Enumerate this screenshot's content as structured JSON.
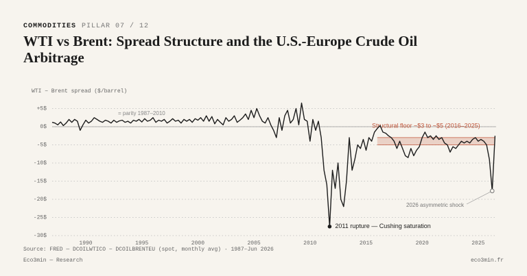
{
  "header": {
    "section": "COMMODITIES",
    "pillar": "PILLAR 07 / 12"
  },
  "chart_data": {
    "type": "line",
    "title": "WTI vs Brent: Spread Structure and the U.S.-Europe Crude Oil Arbitrage",
    "y_label": "WTI − Brent spread ($/barrel)",
    "color": "#1c1c1c",
    "x": [
      1987,
      1987.25,
      1987.5,
      1987.75,
      1988,
      1988.25,
      1988.5,
      1988.75,
      1989,
      1989.25,
      1989.5,
      1989.75,
      1990,
      1990.25,
      1990.5,
      1990.75,
      1991,
      1991.25,
      1991.5,
      1991.75,
      1992,
      1992.25,
      1992.5,
      1992.75,
      1993,
      1993.25,
      1993.5,
      1993.75,
      1994,
      1994.25,
      1994.5,
      1994.75,
      1995,
      1995.25,
      1995.5,
      1995.75,
      1996,
      1996.25,
      1996.5,
      1996.75,
      1997,
      1997.25,
      1997.5,
      1997.75,
      1998,
      1998.25,
      1998.5,
      1998.75,
      1999,
      1999.25,
      1999.5,
      1999.75,
      2000,
      2000.25,
      2000.5,
      2000.75,
      2001,
      2001.25,
      2001.5,
      2001.75,
      2002,
      2002.25,
      2002.5,
      2002.75,
      2003,
      2003.25,
      2003.5,
      2003.75,
      2004,
      2004.25,
      2004.5,
      2004.75,
      2005,
      2005.25,
      2005.5,
      2005.75,
      2006,
      2006.25,
      2006.5,
      2006.75,
      2007,
      2007.25,
      2007.5,
      2007.75,
      2008,
      2008.25,
      2008.5,
      2008.75,
      2009,
      2009.25,
      2009.5,
      2009.75,
      2010,
      2010.25,
      2010.5,
      2010.75,
      2011,
      2011.25,
      2011.5,
      2011.75,
      2012,
      2012.25,
      2012.5,
      2012.75,
      2013,
      2013.25,
      2013.5,
      2013.75,
      2014,
      2014.25,
      2014.5,
      2014.75,
      2015,
      2015.25,
      2015.5,
      2015.75,
      2016,
      2016.25,
      2016.5,
      2016.75,
      2017,
      2017.25,
      2017.5,
      2017.75,
      2018,
      2018.25,
      2018.5,
      2018.75,
      2019,
      2019.25,
      2019.5,
      2019.75,
      2020,
      2020.25,
      2020.5,
      2020.75,
      2021,
      2021.25,
      2021.5,
      2021.75,
      2022,
      2022.25,
      2022.5,
      2022.75,
      2023,
      2023.25,
      2023.5,
      2023.75,
      2024,
      2024.25,
      2024.5,
      2024.75,
      2025,
      2025.25,
      2025.5,
      2025.75,
      2026,
      2026.25,
      2026.5
    ],
    "values": [
      1.2,
      1.0,
      0.5,
      1.3,
      0.3,
      1.0,
      2.0,
      1.2,
      2.0,
      1.5,
      -1.0,
      0.5,
      1.8,
      1.0,
      1.5,
      2.5,
      2.0,
      1.5,
      1.2,
      1.8,
      1.5,
      1.0,
      1.8,
      1.2,
      1.6,
      1.8,
      1.2,
      1.5,
      1.0,
      1.8,
      1.5,
      2.0,
      1.3,
      2.2,
      1.5,
      1.8,
      2.5,
      1.2,
      1.8,
      1.5,
      2.0,
      1.0,
      1.5,
      2.2,
      1.5,
      1.8,
      1.0,
      2.0,
      1.5,
      2.0,
      1.2,
      2.2,
      1.8,
      2.5,
      1.5,
      3.0,
      1.5,
      2.8,
      0.8,
      2.0,
      1.2,
      0.5,
      2.5,
      1.5,
      2.0,
      3.0,
      1.2,
      1.8,
      2.5,
      3.5,
      2.0,
      4.5,
      2.5,
      5.0,
      3.0,
      1.5,
      1.0,
      2.5,
      0.5,
      -1.0,
      -3.0,
      2.5,
      -1.0,
      3.0,
      4.5,
      1.0,
      2.0,
      5.0,
      0.5,
      6.5,
      2.0,
      1.5,
      -4.0,
      2.0,
      -1.0,
      1.5,
      -3.0,
      -12.0,
      -16.0,
      -27.5,
      -12.0,
      -17.0,
      -10.0,
      -20.0,
      -22.0,
      -15.0,
      -3.0,
      -12.0,
      -9.0,
      -5.0,
      -6.0,
      -3.5,
      -6.5,
      -3.0,
      -4.0,
      -1.5,
      -0.5,
      0.3,
      -1.5,
      -1.8,
      -2.5,
      -3.0,
      -4.0,
      -6.0,
      -4.0,
      -6.0,
      -8.0,
      -8.5,
      -6.0,
      -8.0,
      -6.5,
      -5.5,
      -3.0,
      -1.5,
      -3.0,
      -2.5,
      -3.5,
      -2.5,
      -3.5,
      -3.0,
      -4.5,
      -5.0,
      -7.0,
      -5.5,
      -6.0,
      -5.0,
      -4.0,
      -4.5,
      -4.0,
      -4.5,
      -3.5,
      -3.0,
      -4.0,
      -3.5,
      -4.0,
      -5.0,
      -9.0,
      -17.7,
      -2.5
    ],
    "xlim": [
      1987,
      2026.6
    ],
    "xticks": [
      1990,
      1995,
      2000,
      2005,
      2010,
      2015,
      2020,
      2025
    ],
    "ylim": [
      -30,
      8
    ],
    "yticks": [
      {
        "value": 5,
        "label": "+5$"
      },
      {
        "value": 0,
        "label": "0$"
      },
      {
        "value": -5,
        "label": "-5$"
      },
      {
        "value": -10,
        "label": "-10$"
      },
      {
        "value": -15,
        "label": "-15$"
      },
      {
        "value": -20,
        "label": "-20$"
      },
      {
        "value": -25,
        "label": "-25$"
      },
      {
        "value": -30,
        "label": "-30$"
      }
    ],
    "grid": true,
    "zero_line": {
      "value": 0,
      "label": "= parity 1987–2010"
    },
    "band": {
      "label": "Structural floor ~$3 to ~$5 (2016–2025)",
      "x": [
        2016,
        2026.5
      ],
      "y": [
        -5,
        -3
      ],
      "color": "#c0553a"
    },
    "annotations": [
      {
        "text": "2011 rupture — Cushing saturation",
        "x": 2011.75,
        "y": -27.5
      },
      {
        "text": "2026 asymmetric shock",
        "x": 2026.25,
        "y": -17.7
      }
    ],
    "source": "Source: FRED — DCOILWTICO − DCOILBRENTEU (spot, monthly avg) · 1987–Jun 2026"
  },
  "footer": {
    "left": "Eco3min — Research",
    "right": "eco3min.fr"
  }
}
